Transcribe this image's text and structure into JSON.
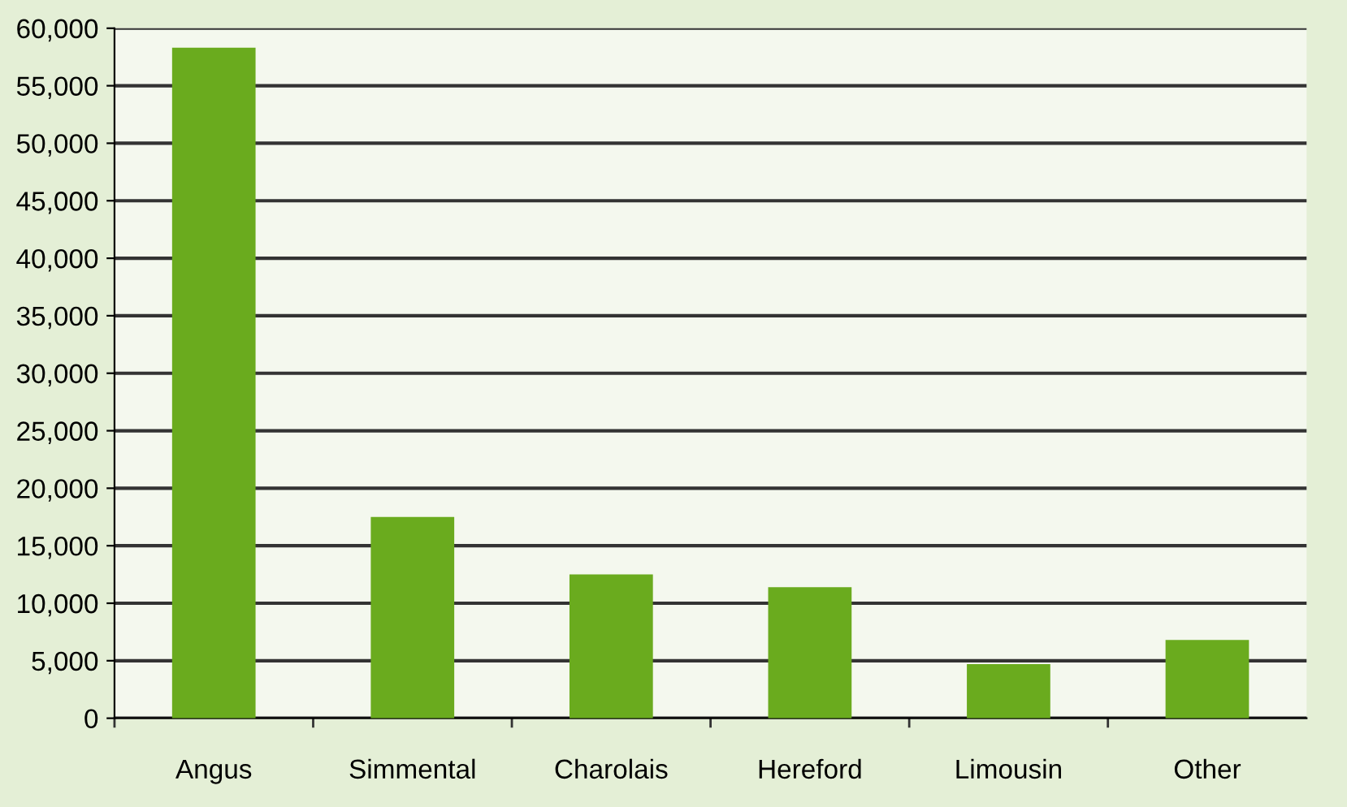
{
  "chart_data": {
    "type": "bar",
    "categories": [
      "Angus",
      "Simmental",
      "Charolais",
      "Hereford",
      "Limousin",
      "Other"
    ],
    "values": [
      58300,
      17500,
      12500,
      11400,
      4700,
      6800
    ],
    "color": "#6aab1e",
    "ylim": [
      0,
      60000
    ],
    "yticks": [
      {
        "value": 0,
        "label": "0"
      },
      {
        "value": 5000,
        "label": "5,000"
      },
      {
        "value": 10000,
        "label": "10,000"
      },
      {
        "value": 15000,
        "label": "15,000"
      },
      {
        "value": 20000,
        "label": "20,000"
      },
      {
        "value": 25000,
        "label": "25,000"
      },
      {
        "value": 30000,
        "label": "30,000"
      },
      {
        "value": 35000,
        "label": "35,000"
      },
      {
        "value": 40000,
        "label": "40,000"
      },
      {
        "value": 45000,
        "label": "45,000"
      },
      {
        "value": 50000,
        "label": "50,000"
      },
      {
        "value": 55000,
        "label": "55,000"
      },
      {
        "value": 60000,
        "label": "60,000"
      }
    ],
    "grid": "y"
  }
}
